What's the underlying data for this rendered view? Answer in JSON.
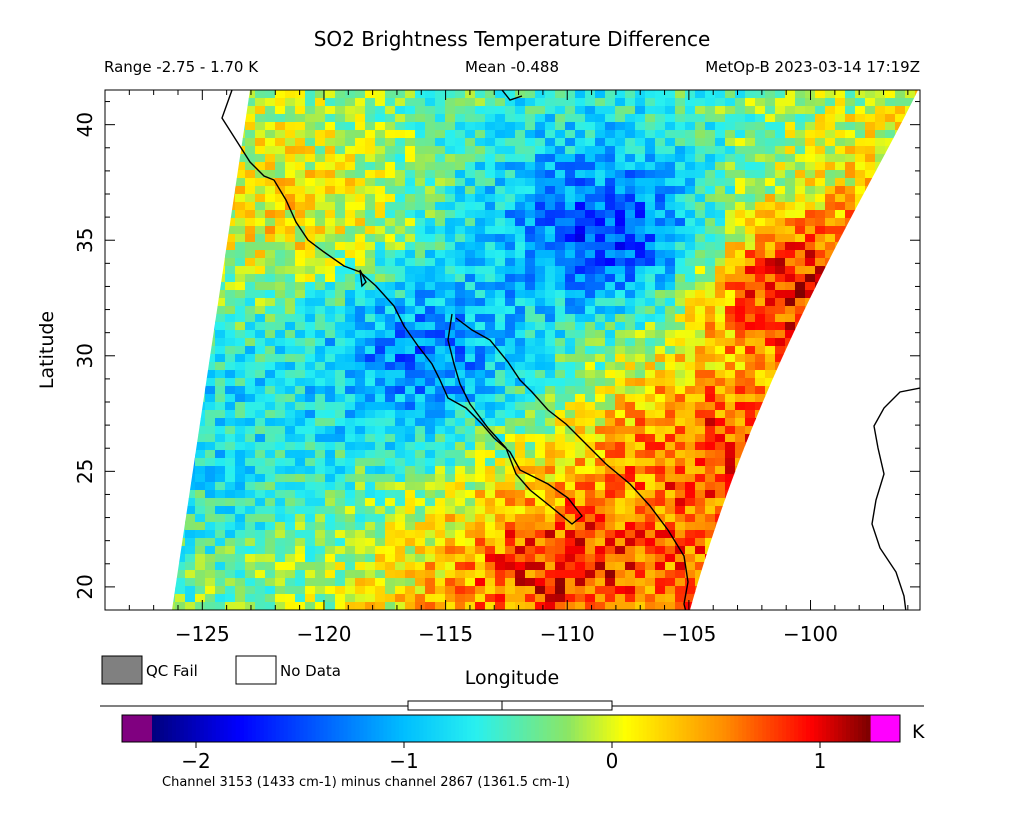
{
  "header": {
    "title": "SO2 Brightness Temperature Difference",
    "range_text": "Range -2.75 - 1.70 K",
    "mean_text": "Mean -0.488",
    "source_text": "MetOp-B 2023-03-14 17:19Z"
  },
  "legend": {
    "qc_fail_label": "QC Fail",
    "no_data_label": "No Data",
    "qc_fail_color": "#808080",
    "no_data_color": "#ffffff"
  },
  "colorbar": {
    "unit": "K",
    "ticks": [
      -2,
      -1,
      0,
      1
    ],
    "caption": "Channel 3153 (1433 cm-1) minus channel 2867 (1361.5 cm-1)",
    "range_min": -2.75,
    "range_max": 1.7,
    "mean": -0.488,
    "underflow_color": "#800080",
    "overflow_color": "#ff00ff"
  },
  "chart_data": {
    "type": "heatmap",
    "title": "SO2 Brightness Temperature Difference",
    "xlabel": "Longitude",
    "ylabel": "Latitude",
    "xlim": [
      -129,
      -95.5
    ],
    "ylim": [
      19,
      41.5
    ],
    "x_ticks": [
      -125,
      -120,
      -115,
      -110,
      -105,
      -100
    ],
    "y_ticks": [
      20,
      25,
      30,
      35,
      40
    ],
    "value_range": [
      -2.75,
      1.7
    ],
    "mean": -0.488,
    "unit": "K",
    "regions": [
      {
        "lon": -121,
        "lat": 36,
        "value": 0.3
      },
      {
        "lon": -108,
        "lat": 35,
        "value": -2.0
      },
      {
        "lon": -116,
        "lat": 30,
        "value": -1.6
      },
      {
        "lon": -110,
        "lat": 21,
        "value": 1.0
      },
      {
        "lon": -101,
        "lat": 33,
        "value": 1.2
      },
      {
        "lon": -104,
        "lat": 26,
        "value": 0.9
      },
      {
        "lon": -125,
        "lat": 27,
        "value": -0.9
      }
    ]
  }
}
